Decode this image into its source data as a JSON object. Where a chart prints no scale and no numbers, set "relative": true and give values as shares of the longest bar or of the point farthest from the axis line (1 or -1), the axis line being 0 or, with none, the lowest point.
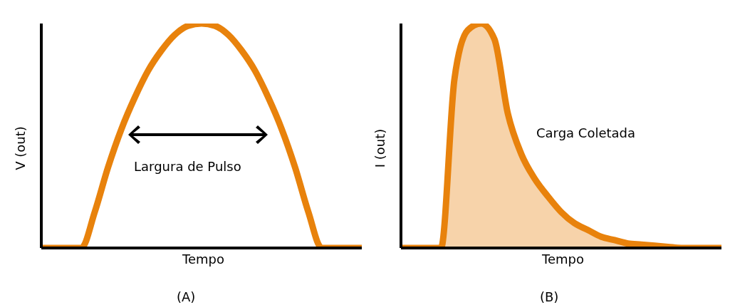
{
  "chart_data": [
    {
      "type": "line",
      "relative": true,
      "xlabel": "Tempo",
      "ylabel": "V (out)",
      "annotations": [
        "Largura de Pulso",
        "(A)"
      ],
      "categories": [
        null,
        null,
        null,
        null,
        null,
        null,
        null,
        null,
        null,
        null,
        null,
        null,
        null,
        null,
        null,
        null,
        null,
        null,
        null,
        null,
        null,
        null,
        null,
        null,
        null
      ],
      "series": [
        {
          "color": "#e8820c",
          "values": [
            0,
            0,
            0,
            0,
            0.16,
            0.36,
            0.53,
            0.67,
            0.79,
            0.88,
            0.95,
            0.99,
            1,
            0.99,
            0.95,
            0.88,
            0.79,
            0.67,
            0.53,
            0.36,
            0.16,
            0,
            0,
            0,
            0
          ]
        }
      ]
    },
    {
      "type": "area",
      "relative": true,
      "xlabel": "Tempo",
      "ylabel": "I (out)",
      "annotations": [
        "Carga Coletada",
        "(B)"
      ],
      "categories": [
        null,
        null,
        null,
        null,
        null,
        null,
        null,
        null,
        null,
        null,
        null,
        null,
        null,
        null,
        null,
        null,
        null,
        null,
        null,
        null,
        null,
        null,
        null,
        null,
        null
      ],
      "series": [
        {
          "color": "#e8820c",
          "values": [
            0,
            0,
            0,
            0,
            0.75,
            0.97,
            1,
            0.93,
            0.6,
            0.42,
            0.31,
            0.23,
            0.16,
            0.11,
            0.08,
            0.05,
            0.035,
            0.02,
            0.015,
            0.01,
            0.005,
            0,
            0,
            0,
            0
          ]
        }
      ]
    }
  ]
}
